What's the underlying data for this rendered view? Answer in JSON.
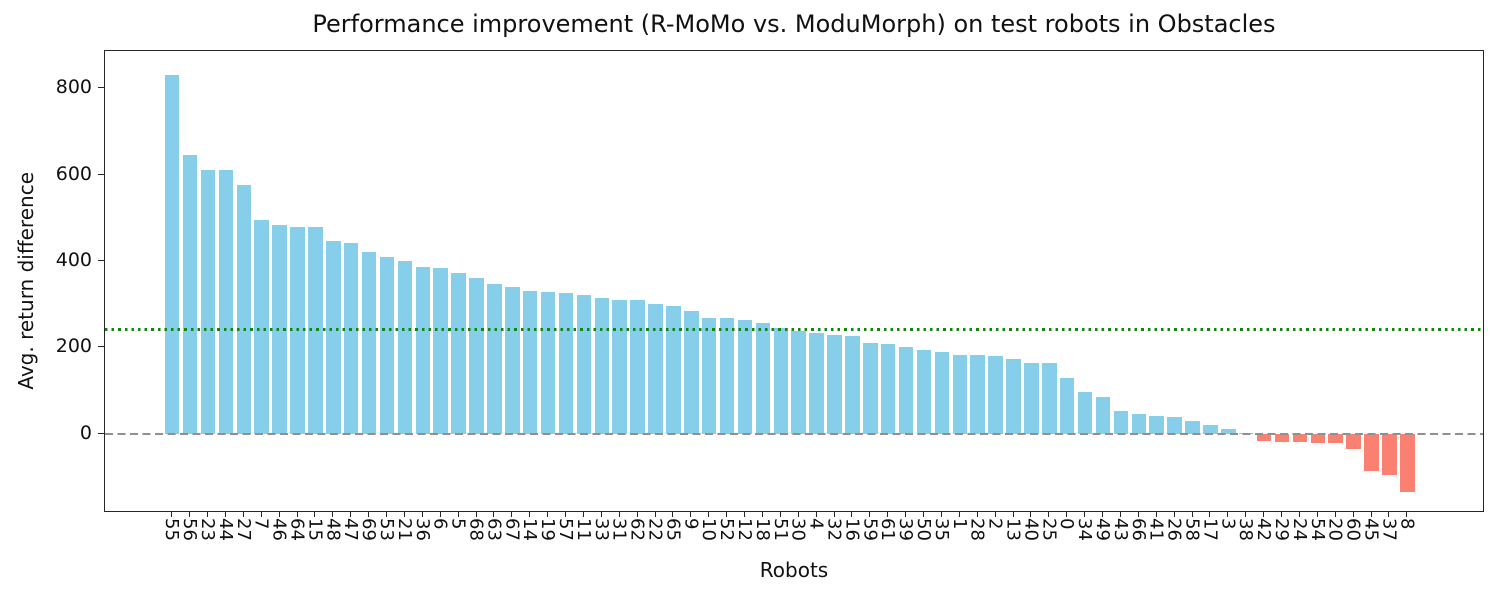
{
  "chart_data": {
    "type": "bar",
    "title": "Performance improvement (R-MoMo vs. ModuMorph) on test robots in Obstacles",
    "xlabel": "Robots",
    "ylabel": "Avg. return difference",
    "categories": [
      "55",
      "56",
      "23",
      "44",
      "27",
      "7",
      "46",
      "64",
      "15",
      "48",
      "47",
      "69",
      "53",
      "21",
      "36",
      "6",
      "5",
      "68",
      "63",
      "67",
      "14",
      "19",
      "57",
      "11",
      "33",
      "31",
      "62",
      "22",
      "65",
      "9",
      "10",
      "52",
      "12",
      "18",
      "51",
      "30",
      "4",
      "32",
      "16",
      "59",
      "61",
      "39",
      "50",
      "35",
      "1",
      "28",
      "2",
      "13",
      "40",
      "25",
      "0",
      "34",
      "49",
      "43",
      "66",
      "41",
      "26",
      "58",
      "17",
      "3",
      "38",
      "42",
      "29",
      "24",
      "54",
      "20",
      "60",
      "45",
      "37",
      "8"
    ],
    "values": [
      830,
      645,
      611,
      610,
      576,
      494,
      484,
      479,
      478,
      446,
      442,
      420,
      409,
      399,
      387,
      384,
      373,
      361,
      348,
      341,
      330,
      328,
      327,
      322,
      314,
      311,
      310,
      300,
      297,
      284,
      269,
      268,
      264,
      257,
      244,
      238,
      234,
      229,
      226,
      211,
      209,
      200,
      194,
      190,
      183,
      182,
      180,
      173,
      165,
      164,
      130,
      98,
      85,
      53,
      47,
      41,
      40,
      29,
      20,
      12,
      3,
      -17,
      -18,
      -19,
      -20,
      -21,
      -35,
      -86,
      -95,
      -135
    ],
    "yticks": [
      0,
      200,
      400,
      600,
      800
    ],
    "ylim": [
      -183,
      886
    ],
    "grid": false,
    "legend": null,
    "bar_color_positive": "#87CEEB",
    "bar_color_negative": "#FA8072",
    "reference_lines": [
      {
        "name": "mean",
        "value": 243.3,
        "color": "#108810",
        "style": "dotted"
      },
      {
        "name": "zero",
        "value": 0,
        "color": "#909090",
        "style": "dashed"
      }
    ]
  }
}
